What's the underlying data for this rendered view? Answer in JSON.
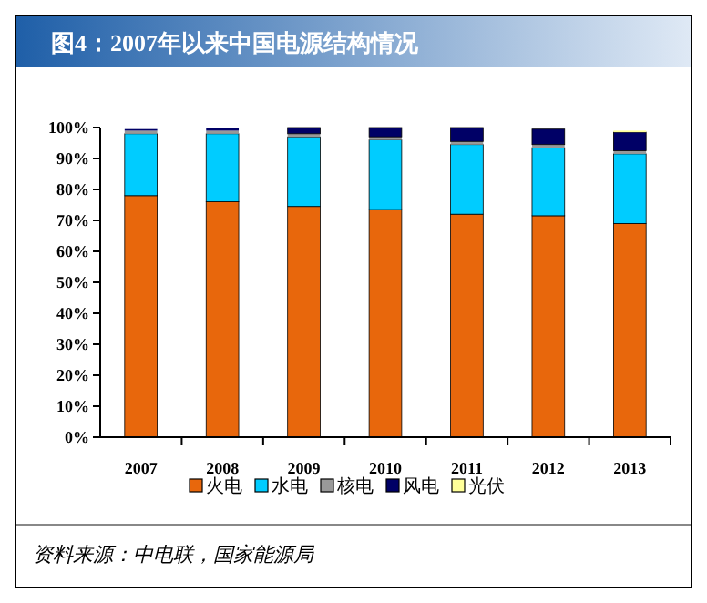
{
  "chart_data": {
    "type": "bar",
    "stacked": true,
    "title": "图4：2007年以来中国电源结构情况",
    "categories": [
      "2007",
      "2008",
      "2009",
      "2010",
      "2011",
      "2012",
      "2013"
    ],
    "series": [
      {
        "name": "火电",
        "color": "#e8670c",
        "values": [
          78,
          76,
          74.5,
          73.5,
          72,
          71.5,
          69
        ]
      },
      {
        "name": "水电",
        "color": "#00ccff",
        "values": [
          20,
          22,
          22.5,
          22.5,
          22.5,
          22,
          22.5
        ]
      },
      {
        "name": "核电",
        "color": "#999999",
        "values": [
          1,
          1,
          1,
          1,
          1,
          1,
          1
        ]
      },
      {
        "name": "风电",
        "color": "#000066",
        "values": [
          0.5,
          1,
          2,
          3,
          4.5,
          5,
          6
        ]
      },
      {
        "name": "光伏",
        "color": "#ffff99",
        "values": [
          0,
          0,
          0,
          0,
          0,
          0,
          0.5
        ]
      }
    ],
    "ylim": [
      0,
      100
    ],
    "yticks": [
      {
        "value": 0,
        "label": "0%"
      },
      {
        "value": 10,
        "label": "10%"
      },
      {
        "value": 20,
        "label": "20%"
      },
      {
        "value": 30,
        "label": "30%"
      },
      {
        "value": 40,
        "label": "40%"
      },
      {
        "value": 50,
        "label": "50%"
      },
      {
        "value": 60,
        "label": "60%"
      },
      {
        "value": 70,
        "label": "70%"
      },
      {
        "value": 80,
        "label": "80%"
      },
      {
        "value": 90,
        "label": "90%"
      },
      {
        "value": 100,
        "label": "100%"
      }
    ],
    "grid": false,
    "legend": "bottom",
    "annotations": [
      "资料来源：中电联，国家能源局"
    ]
  }
}
